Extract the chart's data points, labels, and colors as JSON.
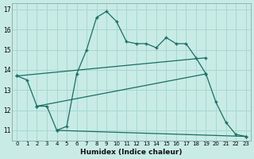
{
  "xlabel": "Humidex (Indice chaleur)",
  "background_color": "#c8ebe6",
  "grid_color": "#a8d8d0",
  "line_color": "#1a6e63",
  "xlim": [
    -0.5,
    23.5
  ],
  "ylim": [
    10.5,
    17.3
  ],
  "yticks": [
    11,
    12,
    13,
    14,
    15,
    16,
    17
  ],
  "xticks": [
    0,
    1,
    2,
    3,
    4,
    5,
    6,
    7,
    8,
    9,
    10,
    11,
    12,
    13,
    14,
    15,
    16,
    17,
    18,
    19,
    20,
    21,
    22,
    23
  ],
  "line1_x": [
    0,
    1,
    2,
    3,
    4,
    5,
    6,
    7,
    8,
    9,
    10,
    11,
    12,
    13,
    14,
    15,
    16,
    17,
    18,
    19,
    20,
    21,
    22,
    23
  ],
  "line1_y": [
    13.7,
    13.5,
    12.2,
    12.2,
    11.0,
    11.2,
    13.8,
    15.0,
    16.6,
    16.9,
    16.4,
    15.4,
    15.3,
    15.3,
    15.1,
    15.6,
    15.3,
    15.3,
    14.6,
    13.8,
    12.4,
    11.4,
    10.8,
    10.7
  ],
  "line2_x": [
    0,
    19
  ],
  "line2_y": [
    13.7,
    14.6
  ],
  "line3_x": [
    2,
    19
  ],
  "line3_y": [
    12.2,
    13.8
  ],
  "line4_x": [
    4,
    23
  ],
  "line4_y": [
    11.0,
    10.7
  ]
}
